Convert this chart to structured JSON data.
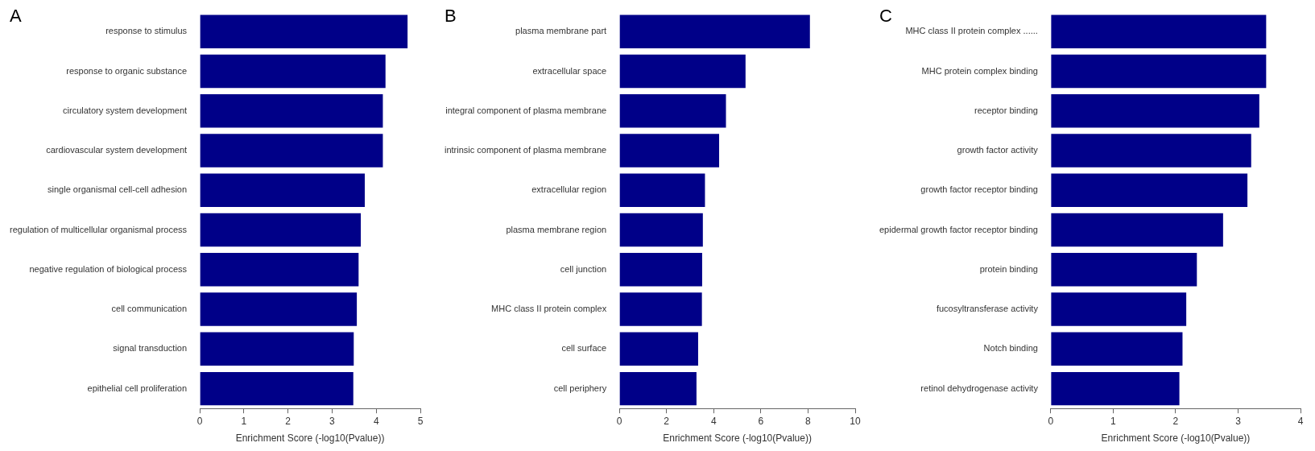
{
  "chart_data": [
    {
      "type": "bar",
      "orientation": "horizontal",
      "title": "A",
      "xlabel": "Enrichment Score (-log10(Pvalue))",
      "categories": [
        "response to stimulus",
        "response to organic substance",
        "circulatory system development",
        "cardiovascular system development",
        "single organismal cell-cell adhesion",
        "regulation of multicellular organismal process",
        "negative regulation of biological process",
        "cell communication",
        "signal transduction",
        "epithelial cell proliferation"
      ],
      "values": [
        4.71,
        4.21,
        4.15,
        4.15,
        3.74,
        3.65,
        3.6,
        3.56,
        3.49,
        3.48
      ],
      "color": "#000088",
      "xlim": [
        0,
        5
      ],
      "xticks": [
        0,
        1,
        2,
        3,
        4,
        5
      ]
    },
    {
      "type": "bar",
      "orientation": "horizontal",
      "title": "B",
      "xlabel": "Enrichment Score (-log10(Pvalue))",
      "categories": [
        "plasma membrane part",
        "extracellular space",
        "integral component of plasma membrane",
        "intrinsic component of plasma membrane",
        "extracellular region",
        "plasma membrane region",
        "cell junction",
        "MHC class II protein complex",
        "cell surface",
        "cell periphery"
      ],
      "values": [
        8.08,
        5.35,
        4.52,
        4.23,
        3.63,
        3.54,
        3.51,
        3.5,
        3.34,
        3.27
      ],
      "color": "#000088",
      "xlim": [
        0,
        10
      ],
      "xticks": [
        0,
        2,
        4,
        6,
        8,
        10
      ]
    },
    {
      "type": "bar",
      "orientation": "horizontal",
      "title": "C",
      "xlabel": "Enrichment Score (-log10(Pvalue))",
      "categories": [
        "MHC class II protein complex ......",
        "MHC protein complex binding",
        "receptor binding",
        "growth factor activity",
        "growth factor receptor binding",
        "epidermal growth factor receptor binding",
        "protein binding",
        "fucosyltransferase activity",
        "Notch binding",
        "retinol dehydrogenase activity"
      ],
      "values": [
        3.45,
        3.45,
        3.34,
        3.21,
        3.15,
        2.76,
        2.34,
        2.17,
        2.11,
        2.06
      ],
      "color": "#000088",
      "xlim": [
        0,
        4
      ],
      "xticks": [
        0,
        1,
        2,
        3,
        4
      ]
    }
  ]
}
